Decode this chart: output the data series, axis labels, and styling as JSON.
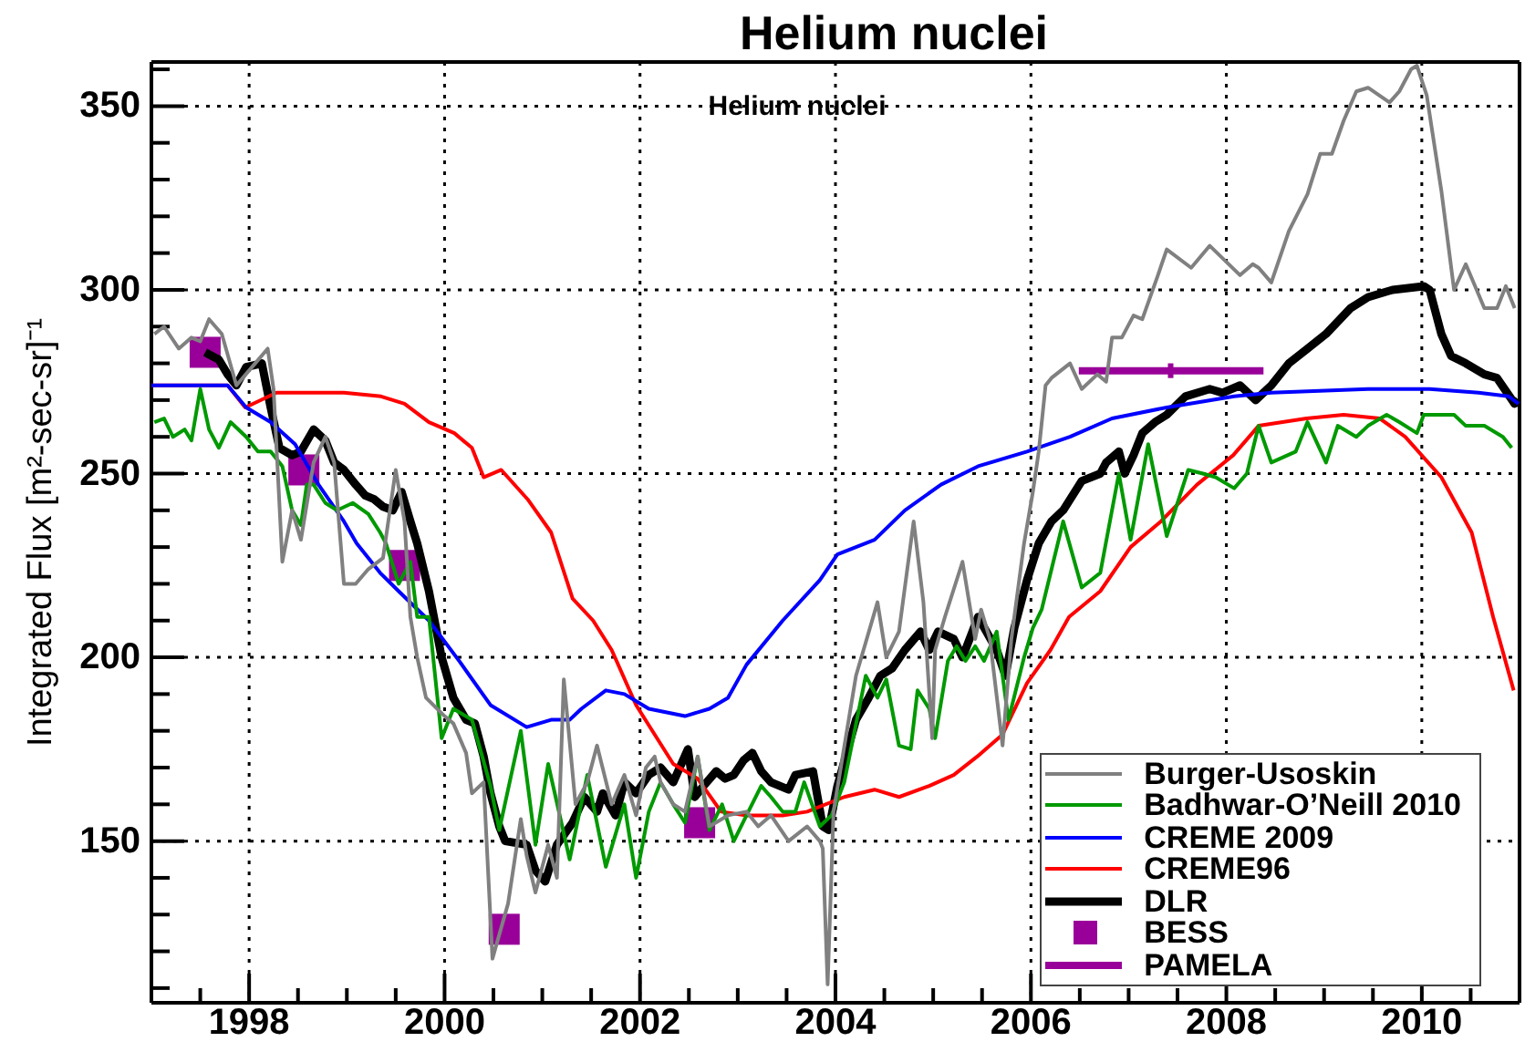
{
  "chart_data": {
    "type": "line",
    "title": "Helium nuclei",
    "subtitle": "Helium nuclei",
    "ylabel": "Integrated Flux [m²-sec-sr]⁻¹",
    "xlim": [
      1997,
      2011
    ],
    "xticks": [
      {
        "value": 1997.5,
        "label": null
      },
      1998,
      {
        "value": 1998.5,
        "label": null
      },
      {
        "value": 1999,
        "label": null
      },
      {
        "value": 1999.5,
        "label": null
      },
      2000,
      {
        "value": 2000.5,
        "label": null
      },
      {
        "value": 2001,
        "label": null
      },
      {
        "value": 2001.5,
        "label": null
      },
      2002,
      {
        "value": 2002.5,
        "label": null
      },
      {
        "value": 2003,
        "label": null
      },
      {
        "value": 2003.5,
        "label": null
      },
      2004,
      {
        "value": 2004.5,
        "label": null
      },
      {
        "value": 2005,
        "label": null
      },
      {
        "value": 2005.5,
        "label": null
      },
      2006,
      {
        "value": 2006.5,
        "label": null
      },
      {
        "value": 2007,
        "label": null
      },
      {
        "value": 2007.5,
        "label": null
      },
      2008,
      {
        "value": 2008.5,
        "label": null
      },
      {
        "value": 2009,
        "label": null
      },
      {
        "value": 2009.5,
        "label": null
      },
      2010,
      {
        "value": 2010.5,
        "label": null
      }
    ],
    "ylim": [
      106,
      362
    ],
    "yticks": [
      {
        "value": 110,
        "label": null
      },
      {
        "value": 120,
        "label": null
      },
      {
        "value": 130,
        "label": null
      },
      {
        "value": 140,
        "label": null
      },
      150,
      {
        "value": 160,
        "label": null
      },
      {
        "value": 170,
        "label": null
      },
      {
        "value": 180,
        "label": null
      },
      {
        "value": 190,
        "label": null
      },
      200,
      {
        "value": 210,
        "label": null
      },
      {
        "value": 220,
        "label": null
      },
      {
        "value": 230,
        "label": null
      },
      {
        "value": 240,
        "label": null
      },
      250,
      {
        "value": 260,
        "label": null
      },
      {
        "value": 270,
        "label": null
      },
      {
        "value": 280,
        "label": null
      },
      {
        "value": 290,
        "label": null
      },
      300,
      {
        "value": 310,
        "label": null
      },
      {
        "value": 320,
        "label": null
      },
      {
        "value": 330,
        "label": null
      },
      {
        "value": 340,
        "label": null
      },
      350,
      {
        "value": 360,
        "label": null
      }
    ],
    "grid": true,
    "legend": "bottom right",
    "series": [
      {
        "name": "Burger-Usoskin",
        "color": "#808080",
        "x": [
          1997.03,
          1997.13,
          1997.28,
          1997.41,
          1997.5,
          1997.59,
          1997.72,
          1997.87,
          1998.03,
          1998.19,
          1998.25,
          1998.34,
          1998.44,
          1998.53,
          1998.66,
          1998.78,
          1998.87,
          1998.97,
          1999.09,
          1999.22,
          1999.37,
          1999.5,
          1999.59,
          1999.65,
          1999.72,
          1999.81,
          2000.0,
          2000.09,
          2000.22,
          2000.28,
          2000.4,
          2000.49,
          2000.65,
          2000.78,
          2000.84,
          2000.93,
          2001.06,
          2001.15,
          2001.22,
          2001.34,
          2001.46,
          2001.56,
          2001.71,
          2001.84,
          2001.96,
          2002.06,
          2002.15,
          2002.21,
          2002.34,
          2002.46,
          2002.59,
          2002.71,
          2002.9,
          2003.09,
          2003.21,
          2003.34,
          2003.52,
          2003.71,
          2003.84,
          2003.87,
          2003.92,
          2003.98,
          2004.21,
          2004.43,
          2004.52,
          2004.65,
          2004.8,
          2004.9,
          2004.99,
          2005.02,
          2005.12,
          2005.3,
          2005.43,
          2005.49,
          2005.58,
          2005.71,
          2005.8,
          2005.93,
          2006.02,
          2006.08,
          2006.15,
          2006.21,
          2006.4,
          2006.52,
          2006.68,
          2006.77,
          2006.83,
          2006.93,
          2007.05,
          2007.14,
          2007.3,
          2007.39,
          2007.64,
          2007.83,
          2008.14,
          2008.27,
          2008.33,
          2008.46,
          2008.64,
          2008.83,
          2008.96,
          2009.08,
          2009.2,
          2009.33,
          2009.45,
          2009.67,
          2009.77,
          2009.89,
          2009.95,
          2010.05,
          2010.2,
          2010.33,
          2010.45,
          2010.64,
          2010.77,
          2010.86,
          2010.95
        ],
        "values": [
          288,
          290,
          284,
          287,
          286,
          292,
          288,
          274,
          279,
          284,
          273,
          226,
          240,
          232,
          253,
          260,
          253,
          220,
          220,
          224,
          227,
          251,
          237,
          211,
          200,
          189,
          184,
          182,
          174,
          163,
          166,
          118,
          133,
          156,
          146,
          136,
          149,
          140,
          194,
          160,
          166,
          176,
          160,
          168,
          157,
          170,
          173,
          166,
          160,
          158,
          173,
          154,
          157,
          158,
          154,
          157,
          150,
          154,
          150,
          148,
          111,
          158,
          195,
          215,
          200,
          207,
          237,
          215,
          178,
          202,
          211,
          226,
          205,
          213,
          205,
          176,
          205,
          231,
          245,
          256,
          274,
          276,
          280,
          273,
          277,
          275,
          287,
          287,
          293,
          292,
          304,
          311,
          306,
          312,
          304,
          307,
          306,
          302,
          316,
          326,
          337,
          337,
          346,
          354,
          355,
          351,
          354,
          360,
          361,
          353,
          327,
          300,
          307,
          295,
          295,
          301,
          295
        ]
      },
      {
        "name": "Badhwar-O’Neill 2010",
        "color": "#009900",
        "x": [
          1997.03,
          1997.13,
          1997.22,
          1997.34,
          1997.41,
          1997.5,
          1997.59,
          1997.69,
          1997.81,
          1997.97,
          1998.09,
          1998.22,
          1998.34,
          1998.44,
          1998.53,
          1998.59,
          1998.66,
          1998.78,
          1998.9,
          1999.06,
          1999.22,
          1999.34,
          1999.4,
          1999.53,
          1999.65,
          1999.72,
          1999.84,
          1999.97,
          2000.09,
          2000.28,
          2000.47,
          2000.56,
          2000.78,
          2000.93,
          2001.06,
          2001.28,
          2001.46,
          2001.65,
          2001.84,
          2001.96,
          2002.09,
          2002.21,
          2002.34,
          2002.46,
          2002.59,
          2002.71,
          2002.84,
          2002.96,
          2003.09,
          2003.24,
          2003.34,
          2003.46,
          2003.59,
          2003.68,
          2003.84,
          2003.96,
          2004.09,
          2004.31,
          2004.43,
          2004.52,
          2004.65,
          2004.77,
          2004.84,
          2004.96,
          2005.02,
          2005.15,
          2005.24,
          2005.33,
          2005.43,
          2005.52,
          2005.65,
          2005.77,
          2005.93,
          2006.02,
          2006.11,
          2006.33,
          2006.52,
          2006.71,
          2006.9,
          2007.02,
          2007.2,
          2007.39,
          2007.61,
          2007.76,
          2007.89,
          2008.08,
          2008.21,
          2008.33,
          2008.46,
          2008.71,
          2008.83,
          2009.02,
          2009.14,
          2009.33,
          2009.45,
          2009.64,
          2009.77,
          2009.95,
          2010.02,
          2010.33,
          2010.45,
          2010.64,
          2010.83,
          2010.92
        ],
        "values": [
          264,
          265,
          260,
          262,
          259,
          273,
          262,
          257,
          264,
          260,
          256,
          256,
          252,
          240,
          236,
          247,
          247,
          242,
          240,
          242,
          239,
          234,
          231,
          220,
          226,
          211,
          211,
          178,
          186,
          183,
          165,
          153,
          180,
          149,
          171,
          145,
          168,
          143,
          160,
          140,
          158,
          166,
          160,
          155,
          173,
          153,
          160,
          150,
          157,
          165,
          162,
          158,
          158,
          166,
          154,
          157,
          166,
          195,
          189,
          194,
          176,
          175,
          191,
          186,
          178,
          199,
          203,
          199,
          203,
          199,
          207,
          183,
          200,
          208,
          213,
          237,
          219,
          223,
          250,
          232,
          258,
          233,
          251,
          250,
          249,
          246,
          250,
          263,
          253,
          256,
          264,
          253,
          263,
          260,
          263,
          266,
          264,
          261,
          266,
          266,
          263,
          263,
          260,
          257
        ]
      },
      {
        "name": "CREME 2009",
        "color": "#0000ff",
        "x": [
          1997.0,
          1997.78,
          1997.97,
          1998.22,
          1998.47,
          1998.71,
          1998.97,
          1999.1,
          1999.34,
          1999.53,
          1999.84,
          2000.15,
          2000.47,
          2000.84,
          2001.09,
          2001.28,
          2001.4,
          2001.65,
          2001.84,
          2002.09,
          2002.46,
          2002.71,
          2002.9,
          2003.09,
          2003.46,
          2003.84,
          2004.02,
          2004.4,
          2004.71,
          2005.08,
          2005.46,
          2005.96,
          2006.4,
          2006.83,
          2007.39,
          2008.08,
          2008.46,
          2009.45,
          2010.08,
          2010.58,
          2010.89,
          2010.99
        ],
        "values": [
          274,
          274,
          268,
          264,
          258,
          247,
          237,
          231,
          223,
          218,
          210,
          199,
          187,
          181,
          183,
          183,
          186,
          191,
          190,
          186,
          184,
          186,
          189,
          198,
          210,
          221,
          228,
          232,
          240,
          247,
          252,
          256,
          260,
          265,
          268,
          271,
          272,
          273,
          273,
          272,
          271,
          269
        ]
      },
      {
        "name": "CREME96",
        "color": "#ff0000",
        "x": [
          1997.0,
          1997.78,
          1997.96,
          1998.28,
          1998.97,
          1999.35,
          1999.59,
          1999.84,
          2000.1,
          2000.28,
          2000.4,
          2000.58,
          2000.85,
          2001.09,
          2001.31,
          2001.52,
          2001.71,
          2001.96,
          2002.15,
          2002.34,
          2002.59,
          2002.83,
          2003.09,
          2003.46,
          2003.71,
          2004.09,
          2004.4,
          2004.65,
          2004.96,
          2005.21,
          2005.45,
          2005.71,
          2005.96,
          2006.2,
          2006.39,
          2006.71,
          2007.02,
          2007.33,
          2007.7,
          2008.07,
          2008.33,
          2008.82,
          2009.2,
          2009.57,
          2009.83,
          2010.2,
          2010.51,
          2010.73,
          2010.94
        ],
        "values": [
          274,
          274,
          268,
          272,
          272,
          271,
          269,
          264,
          261,
          257,
          249,
          251,
          243,
          234,
          216,
          210,
          202,
          187,
          179,
          171,
          167,
          158,
          157,
          157,
          158,
          162,
          164,
          162,
          165,
          168,
          173,
          179,
          193,
          202,
          211,
          218,
          230,
          237,
          247,
          255,
          263,
          265,
          266,
          265,
          260,
          249,
          234,
          211,
          191
        ]
      },
      {
        "name": "DLR",
        "color": "#000000",
        "x": [
          1997.55,
          1997.69,
          1997.78,
          1997.87,
          1997.97,
          1998.13,
          1998.22,
          1998.31,
          1998.44,
          1998.53,
          1998.66,
          1998.78,
          1998.87,
          1998.97,
          1999.09,
          1999.19,
          1999.28,
          1999.37,
          1999.47,
          1999.56,
          1999.65,
          1999.72,
          1999.84,
          1999.97,
          2000.09,
          2000.22,
          2000.31,
          2000.4,
          2000.47,
          2000.56,
          2000.62,
          2000.84,
          2000.93,
          2001.03,
          2001.15,
          2001.31,
          2001.43,
          2001.56,
          2001.62,
          2001.75,
          2001.84,
          2001.96,
          2002.09,
          2002.21,
          2002.34,
          2002.49,
          2002.56,
          2002.65,
          2002.78,
          2002.87,
          2002.96,
          2003.06,
          2003.15,
          2003.24,
          2003.34,
          2003.52,
          2003.59,
          2003.77,
          2003.87,
          2003.93,
          2004.02,
          2004.21,
          2004.34,
          2004.46,
          2004.58,
          2004.71,
          2004.87,
          2004.96,
          2005.05,
          2005.21,
          2005.3,
          2005.46,
          2005.65,
          2005.74,
          2005.83,
          2005.96,
          2006.08,
          2006.21,
          2006.33,
          2006.52,
          2006.71,
          2006.77,
          2006.9,
          2006.96,
          2007.05,
          2007.14,
          2007.27,
          2007.39,
          2007.58,
          2007.83,
          2007.96,
          2008.14,
          2008.3,
          2008.46,
          2008.64,
          2008.83,
          2009.02,
          2009.27,
          2009.45,
          2009.7,
          2010.02,
          2010.08,
          2010.2,
          2010.3,
          2010.45,
          2010.64,
          2010.77,
          2010.95,
          2010.99
        ],
        "values": [
          283,
          281,
          277,
          274,
          279,
          280,
          268,
          257,
          255,
          256,
          262,
          259,
          253,
          251,
          247,
          244,
          243,
          241,
          240,
          245,
          237,
          231,
          218,
          200,
          189,
          183,
          182,
          173,
          163,
          154,
          150,
          149,
          142,
          139,
          149,
          155,
          162,
          158,
          163,
          157,
          166,
          163,
          168,
          170,
          166,
          175,
          162,
          165,
          169,
          167,
          168,
          172,
          174,
          169,
          166,
          164,
          168,
          169,
          154,
          153,
          165,
          183,
          189,
          195,
          197,
          202,
          207,
          202,
          207,
          205,
          200,
          211,
          202,
          195,
          208,
          221,
          231,
          237,
          240,
          248,
          250,
          253,
          256,
          250,
          255,
          261,
          264,
          266,
          271,
          273,
          272,
          274,
          270,
          274,
          280,
          284,
          288,
          295,
          298,
          300,
          301,
          300,
          288,
          282,
          280,
          277,
          276,
          269,
          270
        ]
      },
      {
        "name": "BESS",
        "type": "scatter",
        "marker": "square",
        "color": "#990099",
        "x": [
          1997.55,
          1998.56,
          1999.59,
          2000.61,
          2002.61
        ],
        "values": [
          283,
          251,
          225,
          126,
          155
        ]
      },
      {
        "name": "PAMELA",
        "color": "#990099",
        "x": [
          2006.49,
          2007.43,
          2008.38
        ],
        "values": [
          278,
          278,
          278
        ],
        "errors": [
          null,
          2,
          null
        ]
      }
    ]
  }
}
